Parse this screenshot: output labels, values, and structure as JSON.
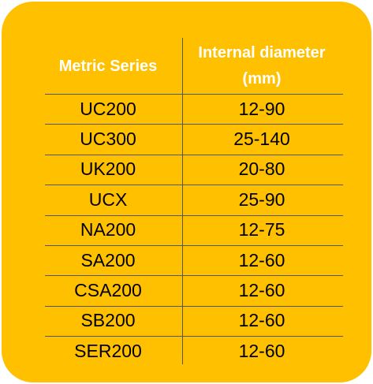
{
  "table": {
    "header": [
      "Metric Series",
      "Internal diameter (mm)"
    ],
    "rows": [
      [
        "UC200",
        "12-90"
      ],
      [
        "UC300",
        "25-140"
      ],
      [
        "UK200",
        "20-80"
      ],
      [
        "UCX",
        "25-90"
      ],
      [
        "NA200",
        "12-75"
      ],
      [
        "SA200",
        "12-60"
      ],
      [
        "CSA200",
        "12-60"
      ],
      [
        "SB200",
        "12-60"
      ],
      [
        "SER200",
        "12-60"
      ]
    ]
  }
}
